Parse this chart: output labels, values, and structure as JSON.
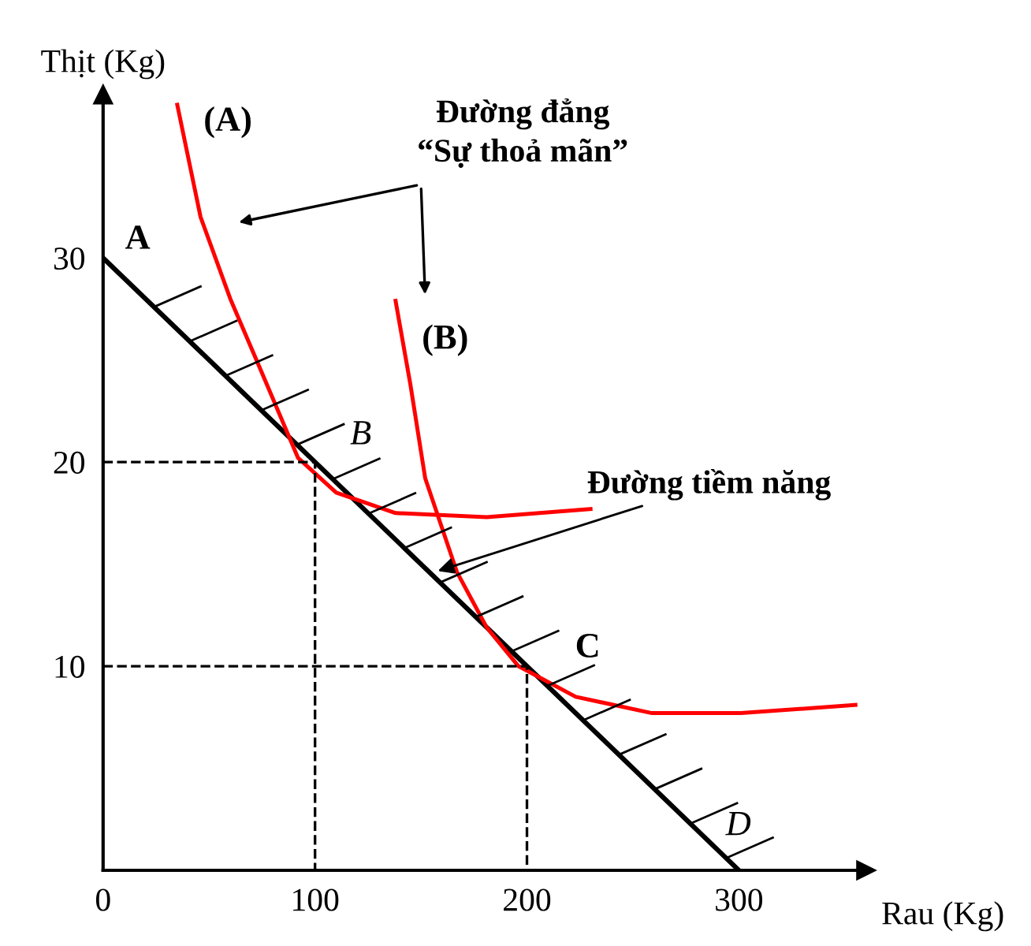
{
  "chart_data": {
    "type": "line",
    "xlabel": "Rau (Kg)",
    "ylabel": "Thịt (Kg)",
    "xlim": [
      0,
      360
    ],
    "ylim": [
      0,
      38
    ],
    "xticks": [
      0,
      100,
      200,
      300
    ],
    "yticks": [
      10,
      20,
      30
    ],
    "grid": false,
    "marker": "none",
    "series": [
      {
        "color": "#000000",
        "x": [
          0,
          300
        ],
        "values": [
          30,
          0
        ],
        "line_style": "solid"
      },
      {
        "color": "#ff0000",
        "x": [
          35,
          46,
          60,
          74,
          92,
          110,
          138,
          181,
          230
        ],
        "values": [
          37.5,
          32,
          28,
          24.6,
          20.2,
          18.5,
          17.5,
          17.3,
          17.7
        ],
        "line_style": "solid"
      },
      {
        "color": "#ff0000",
        "x": [
          138,
          145,
          152,
          167,
          181,
          196,
          223,
          259,
          301,
          355
        ],
        "values": [
          27.9,
          23.8,
          19.2,
          14.6,
          11.9,
          10,
          8.5,
          7.7,
          7.7,
          8.1
        ],
        "line_style": "solid"
      },
      {
        "color": "#000000",
        "x": [
          0,
          100,
          100
        ],
        "values": [
          20,
          20,
          0
        ],
        "line_style": "dashed"
      },
      {
        "color": "#000000",
        "x": [
          0,
          200,
          200
        ],
        "values": [
          10,
          10,
          0
        ],
        "line_style": "dashed"
      }
    ],
    "annotations": [
      "Đường đẳng\n“Sự thoả mãn”",
      {
        "text": "(A)",
        "x": 35,
        "y": 37.5
      },
      {
        "text": "(B)",
        "x": 138,
        "y": 27.9
      },
      {
        "text": "Đường tiềm năng",
        "x": 156,
        "y": 14.6
      },
      {
        "text": "A",
        "x": 0,
        "y": 30
      },
      {
        "text": "B",
        "x": 100,
        "y": 20
      },
      {
        "text": "C",
        "x": 200,
        "y": 10
      },
      {
        "text": "D",
        "x": 300,
        "y": 0
      }
    ]
  }
}
